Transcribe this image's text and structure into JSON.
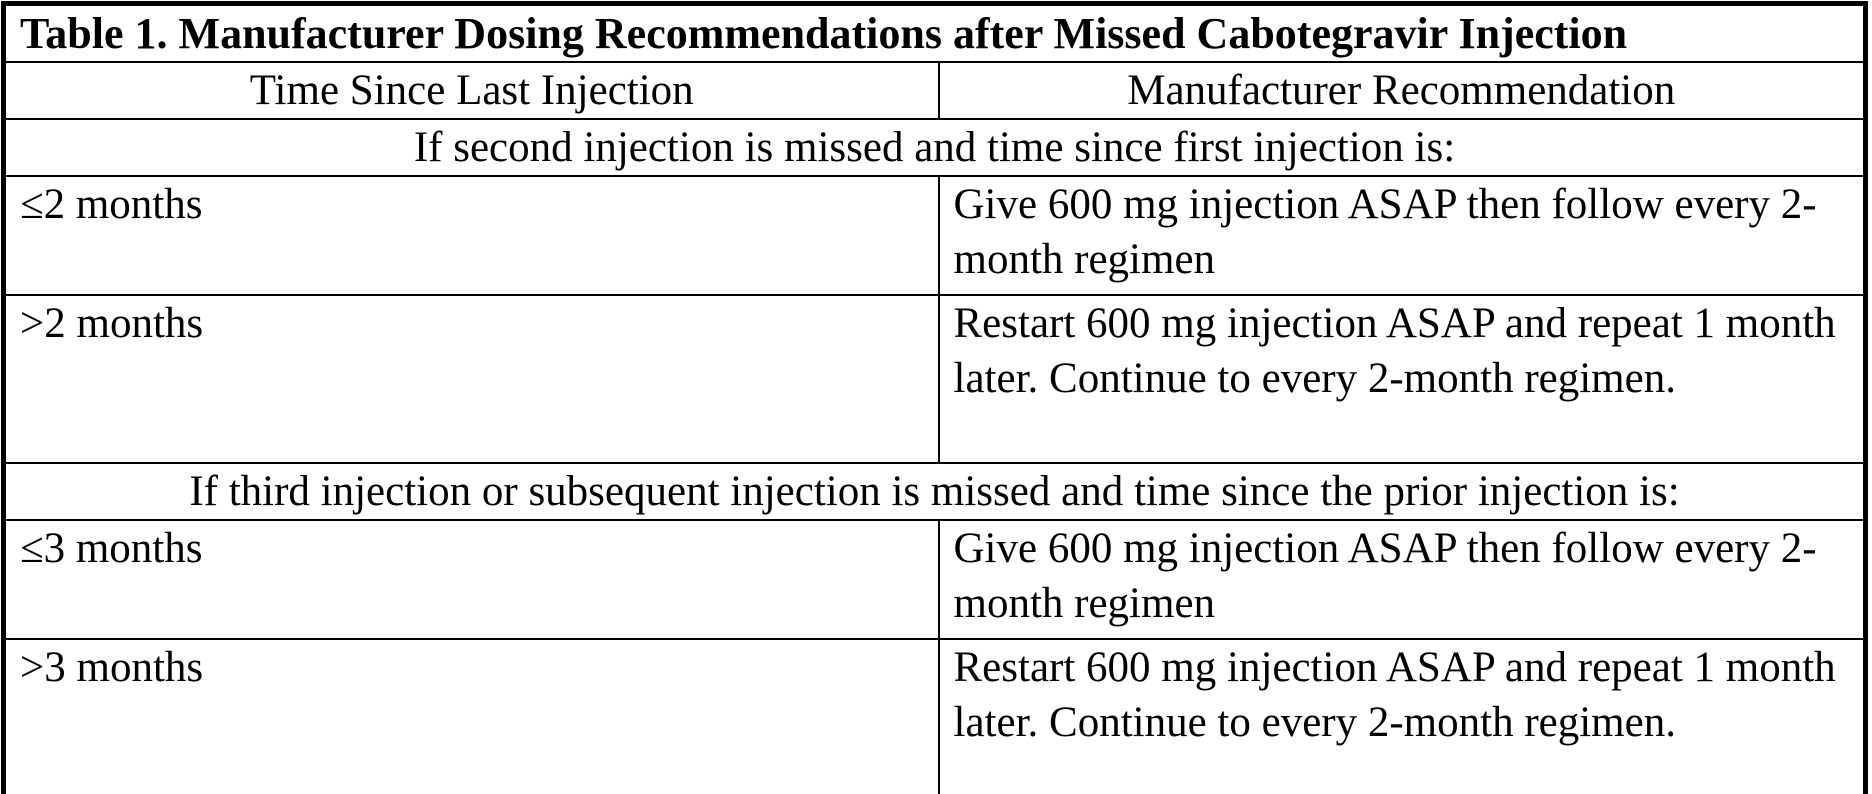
{
  "colors": {
    "border": "#000000",
    "text": "#000000",
    "background": "#ffffff"
  },
  "table": {
    "title": "Table 1. Manufacturer Dosing Recommendations after Missed Cabotegravir Injection",
    "columns": [
      "Time Since Last Injection",
      "Manufacturer Recommendation"
    ],
    "sections": [
      {
        "header": "If second injection is missed and time since first injection is:",
        "rows": [
          {
            "time": "≤2 months",
            "recommendation": "Give 600 mg injection ASAP then follow every 2-month regimen"
          },
          {
            "time": ">2 months",
            "recommendation": "Restart 600 mg injection ASAP and repeat 1 month later. Continue to every 2-month regimen."
          }
        ]
      },
      {
        "header": "If third injection or subsequent injection is missed and time since the prior injection is:",
        "rows": [
          {
            "time": "≤3 months",
            "recommendation": "Give 600 mg injection ASAP then follow every 2-month regimen"
          },
          {
            "time": ">3 months",
            "recommendation": "Restart 600 mg injection ASAP and repeat 1 month later. Continue to every 2-month regimen."
          }
        ]
      }
    ]
  }
}
